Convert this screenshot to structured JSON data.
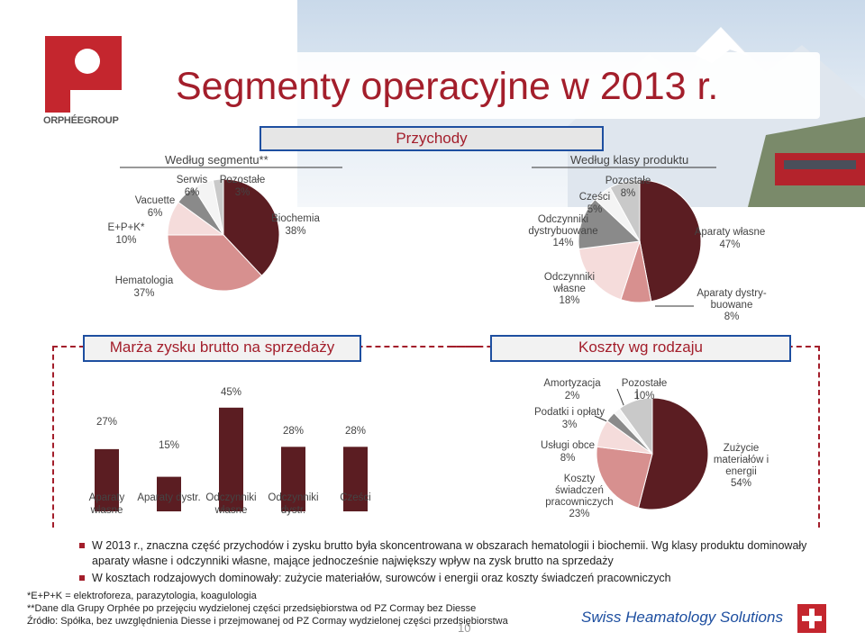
{
  "title": "Segmenty operacyjne w 2013 r.",
  "logo_text": "ORPHÉEGROUP",
  "sections": {
    "revenue": "Przychody",
    "by_segment": "Według segmentu**",
    "by_product": "Według klasy produktu",
    "margin": "Marża zysku brutto na sprzedaży",
    "costs": "Koszty wg rodzaju"
  },
  "chart_data": [
    {
      "type": "pie",
      "title": "Według segmentu**",
      "slices": [
        {
          "label": "Biochemia",
          "pct": "38%",
          "value": 38,
          "color": "#5b1d22"
        },
        {
          "label": "Hematologia",
          "pct": "37%",
          "value": 37,
          "color": "#d7908f"
        },
        {
          "label": "E+P+K*",
          "pct": "10%",
          "value": 10,
          "color": "#f5dcdb"
        },
        {
          "label": "Vacuette",
          "pct": "6%",
          "value": 6,
          "color": "#8a8a8a"
        },
        {
          "label": "Serwis",
          "pct": "6%",
          "value": 6,
          "color": "#f4f4f4"
        },
        {
          "label": "Pozostałe",
          "pct": "3%",
          "value": 3,
          "color": "#c9c9c9"
        }
      ]
    },
    {
      "type": "pie",
      "title": "Według klasy produktu",
      "slices": [
        {
          "label": "Aparaty własne",
          "pct": "47%",
          "value": 47,
          "color": "#5b1d22"
        },
        {
          "label": "Aparaty dystry-",
          "label2": "buowane",
          "pct": "8%",
          "value": 8,
          "color": "#d7908f"
        },
        {
          "label": "Odczynniki",
          "label2": "własne",
          "pct": "18%",
          "value": 18,
          "color": "#f5dcdb"
        },
        {
          "label": "Odczynniki",
          "label2": "dystrybuowane",
          "pct": "14%",
          "value": 14,
          "color": "#8a8a8a"
        },
        {
          "label": "Cześci",
          "pct": "5%",
          "value": 5,
          "color": "#f4f4f4"
        },
        {
          "label": "Pozostałe",
          "pct": "8%",
          "value": 8,
          "color": "#c9c9c9"
        }
      ]
    },
    {
      "type": "bar",
      "title": "Marża zysku brutto na sprzedaży",
      "ylim": [
        0,
        50
      ],
      "bars": [
        {
          "label": "Aparaty",
          "label2": "własne",
          "pct": "27%",
          "value": 27
        },
        {
          "label": "Aparaty dystr.",
          "label2": "",
          "pct": "15%",
          "value": 15
        },
        {
          "label": "Odczynniki",
          "label2": "własne",
          "pct": "45%",
          "value": 45
        },
        {
          "label": "Odczynniki",
          "label2": "dystr.",
          "pct": "28%",
          "value": 28
        },
        {
          "label": "Cześci",
          "label2": "",
          "pct": "28%",
          "value": 28
        }
      ]
    },
    {
      "type": "pie",
      "title": "Koszty wg rodzaju",
      "slices": [
        {
          "label": "Zużycie",
          "label2": "materiałów i",
          "label3": "energii",
          "pct": "54%",
          "value": 54,
          "color": "#5b1d22"
        },
        {
          "label": "Koszty",
          "label2": "świadczeń",
          "label3": "pracowniczych",
          "pct": "23%",
          "value": 23,
          "color": "#d7908f"
        },
        {
          "label": "Usługi obce",
          "pct": "8%",
          "value": 8,
          "color": "#f5dcdb"
        },
        {
          "label": "Podatki i opłaty",
          "pct": "3%",
          "value": 3,
          "color": "#8a8a8a"
        },
        {
          "label": "Amortyzacja",
          "pct": "2%",
          "value": 2,
          "color": "#f4f4f4"
        },
        {
          "label": "Pozostałe",
          "pct": "10%",
          "value": 10,
          "color": "#c9c9c9"
        }
      ]
    }
  ],
  "bullets": [
    "W 2013 r., znaczna część przychodów i zysku brutto była skoncentrowana w obszarach hematologii i biochemii. Wg klasy produktu dominowały aparaty własne i odczynniki własne, mające jednocześnie największy wpływ na zysk brutto na sprzedaży",
    "W kosztach rodzajowych dominowały: zużycie materiałów, surowców i energii oraz koszty świadczeń pracowniczych"
  ],
  "footnotes": [
    "*E+P+K = elektroforeza, parazytologia, koagulologia",
    "**Dane dla Grupy Orphée po przejęciu wydzielonej części przedsiębiorstwa od PZ Cormay bez Diesse",
    "Źródło: Spółka, bez uwzględnienia Diesse i przejmowanej od PZ Cormay wydzielonej części przedsiębiorstwa"
  ],
  "page_number": "10",
  "brand": "Swiss Heamatology Solutions"
}
